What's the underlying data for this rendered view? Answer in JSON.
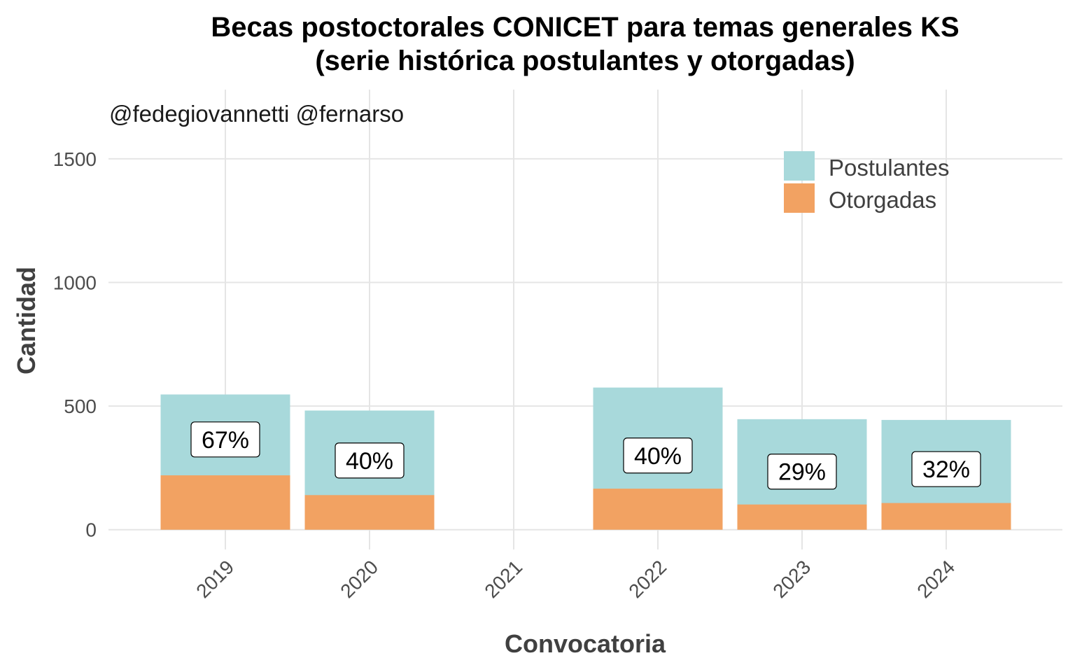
{
  "chart_data": {
    "type": "bar",
    "stacked": "overlay",
    "title_lines": [
      "Becas postoctorales CONICET para temas generales KS",
      "(serie histórica postulantes y otorgadas)"
    ],
    "annotation": "@fedegiovannetti @fernarso",
    "xlabel": "Convocatoria",
    "ylabel": "Cantidad",
    "categories": [
      "2019",
      "2020",
      "2021",
      "2022",
      "2023",
      "2024"
    ],
    "series": [
      {
        "name": "Postulantes",
        "color": "#a8d9db",
        "values": [
          547,
          482,
          null,
          575,
          447,
          444
        ]
      },
      {
        "name": "Otorgadas",
        "color": "#f2a262",
        "values": [
          220,
          140,
          null,
          166,
          102,
          108
        ]
      }
    ],
    "percent_labels": [
      "67%",
      "40%",
      null,
      "40%",
      "29%",
      "32%"
    ],
    "percent_label_values": [
      365,
      280,
      null,
      300,
      235,
      245
    ],
    "yticks": [
      0,
      500,
      1000,
      1500
    ],
    "ylim": [
      -80,
      1780
    ],
    "grid": true,
    "legend": "top-right"
  }
}
